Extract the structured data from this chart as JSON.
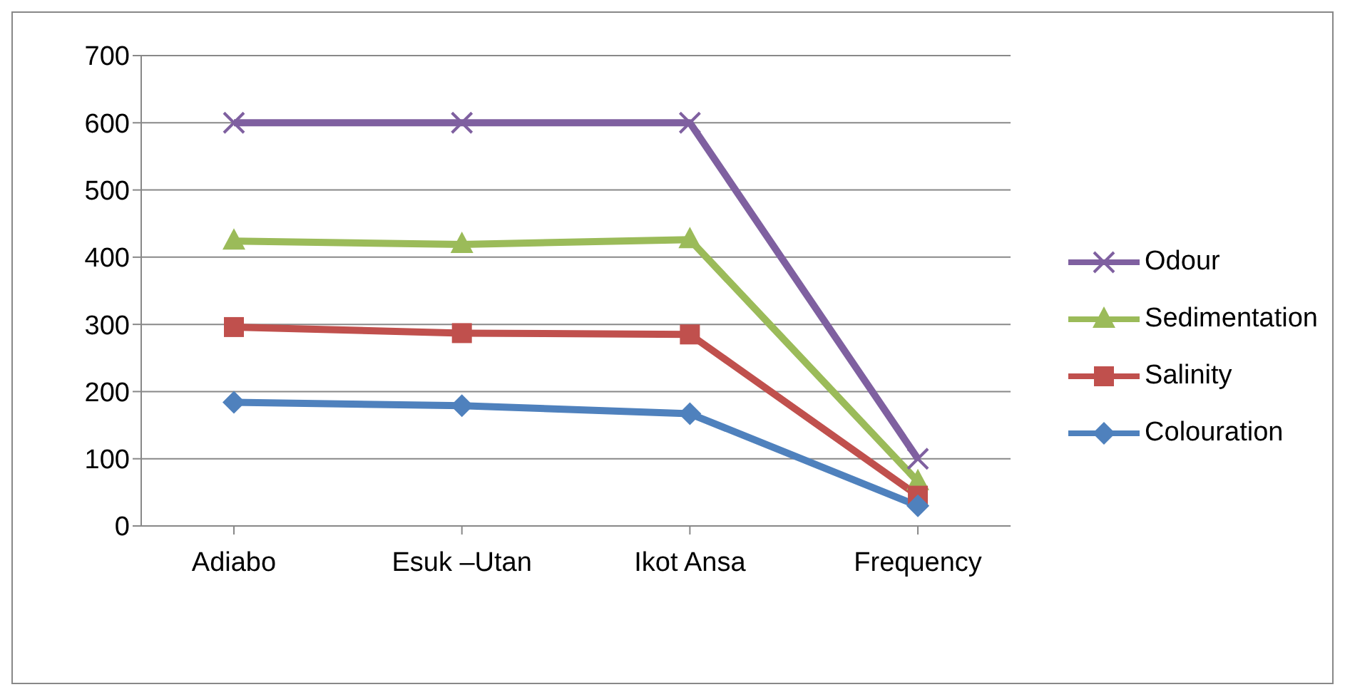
{
  "chart_data": {
    "type": "line",
    "categories": [
      "Adiabo",
      "Esuk –Utan",
      "Ikot Ansa",
      "Frequency"
    ],
    "series": [
      {
        "name": "Odour",
        "color": "#7f60a0",
        "marker": "cross",
        "values": [
          600,
          600,
          600,
          100
        ]
      },
      {
        "name": "Sedimentation",
        "color": "#9bbb59",
        "marker": "triangle",
        "values": [
          424,
          419,
          426,
          66
        ]
      },
      {
        "name": "Salinity",
        "color": "#c0504d",
        "marker": "square",
        "values": [
          296,
          287,
          285,
          45
        ]
      },
      {
        "name": "Colouration",
        "color": "#4f81bd",
        "marker": "diamond",
        "values": [
          184,
          179,
          167,
          30
        ]
      }
    ],
    "ylim": [
      0,
      700
    ],
    "yticks": [
      0,
      100,
      200,
      300,
      400,
      500,
      600,
      700
    ],
    "grid": "y",
    "legend": "right"
  }
}
